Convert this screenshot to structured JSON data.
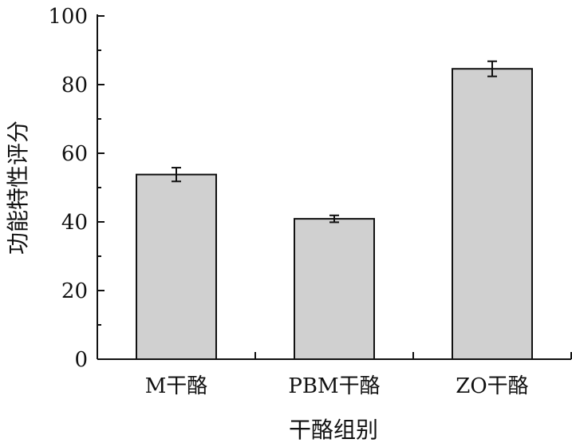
{
  "chart_data": {
    "type": "bar",
    "categories": [
      "M干酪",
      "PBM干酪",
      "ZO干酪"
    ],
    "values": [
      53.8,
      40.9,
      84.6
    ],
    "errors": [
      2.0,
      1.0,
      2.2
    ],
    "title": "",
    "xlabel": "干酪组别",
    "ylabel": "功能特性评分",
    "ylim": [
      0,
      100
    ],
    "yticks": [
      "0",
      "20",
      "40",
      "60",
      "80",
      "100"
    ],
    "grid": false,
    "legend": "none",
    "bar_color": "#d0d0d0",
    "edge_color": "#111111"
  }
}
